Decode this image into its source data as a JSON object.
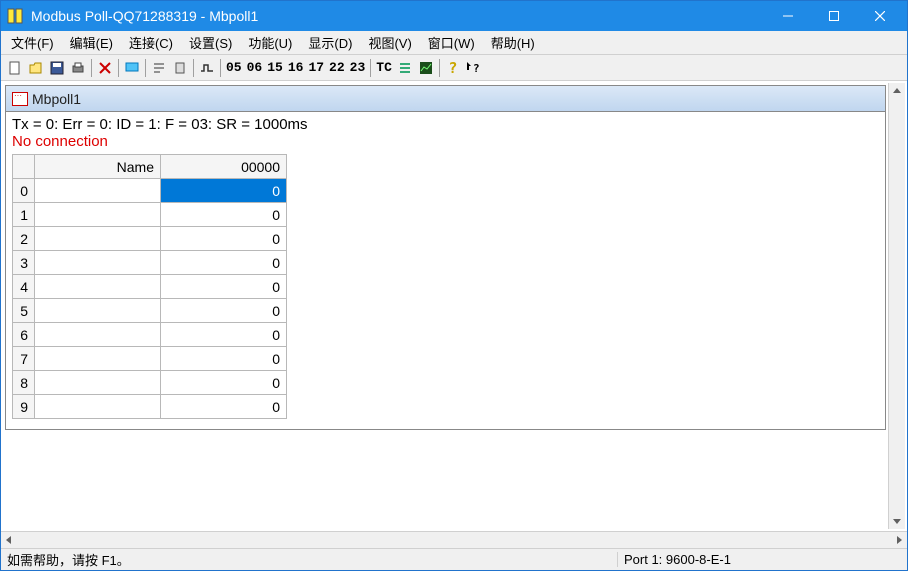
{
  "colors": {
    "titlebar_bg": "#1f8ae6",
    "selection_bg": "#0078d7",
    "error_text": "#d00000",
    "grid_border": "#b8b8b8"
  },
  "titlebar": {
    "title": "Modbus Poll-QQ71288319 - Mbpoll1"
  },
  "menu": {
    "items": [
      {
        "label": "文件(F)"
      },
      {
        "label": "编辑(E)"
      },
      {
        "label": "连接(C)"
      },
      {
        "label": "设置(S)"
      },
      {
        "label": "功能(U)"
      },
      {
        "label": "显示(D)"
      },
      {
        "label": "视图(V)"
      },
      {
        "label": "窗口(W)"
      },
      {
        "label": "帮助(H)"
      }
    ]
  },
  "toolbar": {
    "fc_buttons": [
      "05",
      "06",
      "15",
      "16",
      "17",
      "22",
      "23"
    ],
    "tc_label": "TC"
  },
  "document": {
    "title": "Mbpoll1",
    "status_line": "Tx = 0: Err = 0: ID = 1: F = 03: SR = 1000ms",
    "no_connection": "No connection",
    "headers": {
      "name": "Name",
      "value": "00000"
    },
    "rows": [
      {
        "idx": "0",
        "name": "",
        "val": "0",
        "selected": true
      },
      {
        "idx": "1",
        "name": "",
        "val": "0",
        "selected": false
      },
      {
        "idx": "2",
        "name": "",
        "val": "0",
        "selected": false
      },
      {
        "idx": "3",
        "name": "",
        "val": "0",
        "selected": false
      },
      {
        "idx": "4",
        "name": "",
        "val": "0",
        "selected": false
      },
      {
        "idx": "5",
        "name": "",
        "val": "0",
        "selected": false
      },
      {
        "idx": "6",
        "name": "",
        "val": "0",
        "selected": false
      },
      {
        "idx": "7",
        "name": "",
        "val": "0",
        "selected": false
      },
      {
        "idx": "8",
        "name": "",
        "val": "0",
        "selected": false
      },
      {
        "idx": "9",
        "name": "",
        "val": "0",
        "selected": false
      }
    ]
  },
  "statusbar": {
    "help": "如需帮助，请按 F1。",
    "port": "Port 1: 9600-8-E-1"
  }
}
